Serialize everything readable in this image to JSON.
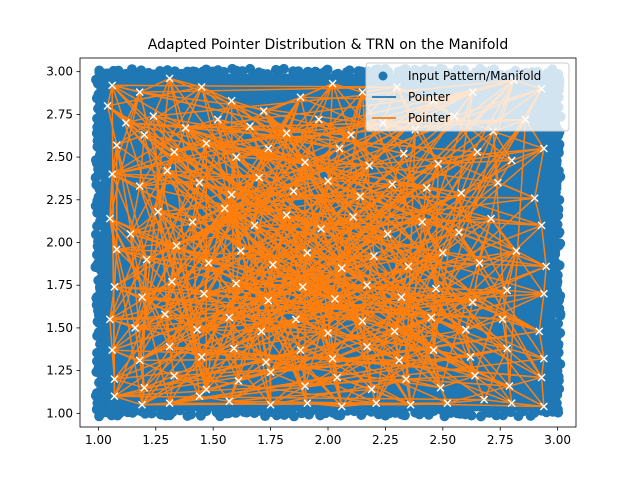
{
  "chart_data": {
    "type": "scatter",
    "title": "Adapted Pointer Distribution & TRN on the Manifold",
    "xlabel": "",
    "ylabel": "",
    "xlim": [
      0.92,
      3.08
    ],
    "ylim": [
      0.92,
      3.08
    ],
    "x_ticks": [
      "1.00",
      "1.25",
      "1.50",
      "1.75",
      "2.00",
      "2.25",
      "2.50",
      "2.75",
      "3.00"
    ],
    "y_ticks": [
      "1.00",
      "1.25",
      "1.50",
      "1.75",
      "2.00",
      "2.25",
      "2.50",
      "2.75",
      "3.00"
    ],
    "grid": false,
    "legend_position": "top-right",
    "colors": {
      "manifold": "#1f77b4",
      "edges": "#ff7f0e",
      "pointer_marker": "#ffffff",
      "outline_green": "#2ca02c"
    },
    "series": [
      {
        "name": "Input Pattern/Manifold",
        "kind": "dense-point-cloud",
        "x_range": [
          1.0,
          3.0
        ],
        "y_range": [
          1.0,
          3.0
        ]
      },
      {
        "name": "Pointer",
        "kind": "line",
        "color": "#1f77b4"
      },
      {
        "name": "Pointer",
        "kind": "line",
        "color": "#ff7f0e"
      }
    ],
    "pointers": [
      [
        1.06,
        2.92
      ],
      [
        1.18,
        2.88
      ],
      [
        1.31,
        2.96
      ],
      [
        1.45,
        2.91
      ],
      [
        1.58,
        2.83
      ],
      [
        1.72,
        2.77
      ],
      [
        1.88,
        2.85
      ],
      [
        2.02,
        2.93
      ],
      [
        2.15,
        2.88
      ],
      [
        2.3,
        2.91
      ],
      [
        2.46,
        2.83
      ],
      [
        2.63,
        2.88
      ],
      [
        2.81,
        2.95
      ],
      [
        2.93,
        2.9
      ],
      [
        1.04,
        2.8
      ],
      [
        1.12,
        2.7
      ],
      [
        1.24,
        2.74
      ],
      [
        1.38,
        2.67
      ],
      [
        1.52,
        2.72
      ],
      [
        1.66,
        2.68
      ],
      [
        1.82,
        2.64
      ],
      [
        1.96,
        2.72
      ],
      [
        2.1,
        2.63
      ],
      [
        2.24,
        2.7
      ],
      [
        2.38,
        2.66
      ],
      [
        2.55,
        2.74
      ],
      [
        2.72,
        2.65
      ],
      [
        2.86,
        2.72
      ],
      [
        1.08,
        2.57
      ],
      [
        1.2,
        2.63
      ],
      [
        1.33,
        2.53
      ],
      [
        1.47,
        2.58
      ],
      [
        1.6,
        2.5
      ],
      [
        1.74,
        2.55
      ],
      [
        1.9,
        2.47
      ],
      [
        2.05,
        2.55
      ],
      [
        2.18,
        2.45
      ],
      [
        2.33,
        2.52
      ],
      [
        2.48,
        2.46
      ],
      [
        2.65,
        2.53
      ],
      [
        2.8,
        2.48
      ],
      [
        2.94,
        2.55
      ],
      [
        1.06,
        2.4
      ],
      [
        1.18,
        2.33
      ],
      [
        1.3,
        2.42
      ],
      [
        1.44,
        2.35
      ],
      [
        1.58,
        2.28
      ],
      [
        1.7,
        2.38
      ],
      [
        1.85,
        2.3
      ],
      [
        2.0,
        2.36
      ],
      [
        2.14,
        2.27
      ],
      [
        2.28,
        2.34
      ],
      [
        2.43,
        2.32
      ],
      [
        2.58,
        2.29
      ],
      [
        2.74,
        2.35
      ],
      [
        2.9,
        2.26
      ],
      [
        1.05,
        2.14
      ],
      [
        1.14,
        2.05
      ],
      [
        1.26,
        2.18
      ],
      [
        1.41,
        2.12
      ],
      [
        1.55,
        2.2
      ],
      [
        1.68,
        2.1
      ],
      [
        1.82,
        2.16
      ],
      [
        1.97,
        2.08
      ],
      [
        2.11,
        2.15
      ],
      [
        2.26,
        2.05
      ],
      [
        2.41,
        2.12
      ],
      [
        2.57,
        2.06
      ],
      [
        2.71,
        2.14
      ],
      [
        2.93,
        2.1
      ],
      [
        1.08,
        1.96
      ],
      [
        1.21,
        1.9
      ],
      [
        1.34,
        1.98
      ],
      [
        1.48,
        1.88
      ],
      [
        1.62,
        1.95
      ],
      [
        1.76,
        1.87
      ],
      [
        1.91,
        1.94
      ],
      [
        2.06,
        1.85
      ],
      [
        2.2,
        1.92
      ],
      [
        2.35,
        1.86
      ],
      [
        2.5,
        1.94
      ],
      [
        2.66,
        1.88
      ],
      [
        2.82,
        1.95
      ],
      [
        2.95,
        1.86
      ],
      [
        1.07,
        1.74
      ],
      [
        1.19,
        1.68
      ],
      [
        1.32,
        1.77
      ],
      [
        1.46,
        1.7
      ],
      [
        1.6,
        1.76
      ],
      [
        1.74,
        1.66
      ],
      [
        1.89,
        1.74
      ],
      [
        2.03,
        1.67
      ],
      [
        2.17,
        1.75
      ],
      [
        2.32,
        1.68
      ],
      [
        2.47,
        1.73
      ],
      [
        2.63,
        1.65
      ],
      [
        2.78,
        1.72
      ],
      [
        2.94,
        1.7
      ],
      [
        1.05,
        1.55
      ],
      [
        1.16,
        1.5
      ],
      [
        1.29,
        1.58
      ],
      [
        1.43,
        1.49
      ],
      [
        1.57,
        1.56
      ],
      [
        1.71,
        1.48
      ],
      [
        1.86,
        1.55
      ],
      [
        2.0,
        1.47
      ],
      [
        2.15,
        1.54
      ],
      [
        2.29,
        1.48
      ],
      [
        2.45,
        1.56
      ],
      [
        2.6,
        1.49
      ],
      [
        2.76,
        1.55
      ],
      [
        2.92,
        1.48
      ],
      [
        1.06,
        1.37
      ],
      [
        1.18,
        1.31
      ],
      [
        1.31,
        1.39
      ],
      [
        1.45,
        1.33
      ],
      [
        1.59,
        1.38
      ],
      [
        1.73,
        1.3
      ],
      [
        1.88,
        1.37
      ],
      [
        2.02,
        1.32
      ],
      [
        2.17,
        1.39
      ],
      [
        2.31,
        1.31
      ],
      [
        2.46,
        1.37
      ],
      [
        2.62,
        1.33
      ],
      [
        2.78,
        1.38
      ],
      [
        2.94,
        1.32
      ],
      [
        1.07,
        1.2
      ],
      [
        1.2,
        1.15
      ],
      [
        1.33,
        1.22
      ],
      [
        1.47,
        1.14
      ],
      [
        1.61,
        1.19
      ],
      [
        1.75,
        1.24
      ],
      [
        1.9,
        1.16
      ],
      [
        2.04,
        1.21
      ],
      [
        2.19,
        1.14
      ],
      [
        2.34,
        1.2
      ],
      [
        2.49,
        1.15
      ],
      [
        2.64,
        1.22
      ],
      [
        2.79,
        1.16
      ],
      [
        2.93,
        1.21
      ],
      [
        1.07,
        1.1
      ],
      [
        1.19,
        1.05
      ],
      [
        1.31,
        1.06
      ],
      [
        1.44,
        1.1
      ],
      [
        1.57,
        1.07
      ],
      [
        1.75,
        1.05
      ],
      [
        1.91,
        1.06
      ],
      [
        2.06,
        1.04
      ],
      [
        2.21,
        1.06
      ],
      [
        2.36,
        1.05
      ],
      [
        2.52,
        1.06
      ],
      [
        2.68,
        1.08
      ],
      [
        2.8,
        1.06
      ],
      [
        2.94,
        1.04
      ]
    ]
  }
}
